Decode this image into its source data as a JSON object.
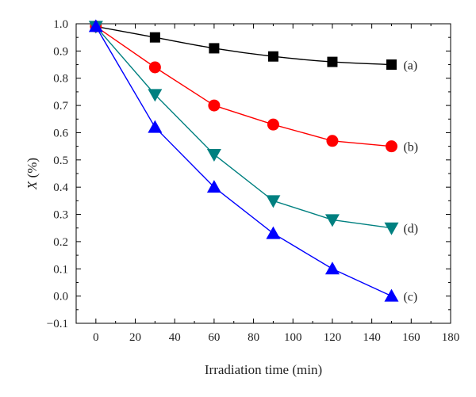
{
  "chart_data": {
    "type": "line",
    "xlabel": "Irradiation time (min)",
    "ylabel_italic": "X",
    "ylabel_rest": " (%)",
    "xlim": [
      -10,
      180
    ],
    "ylim": [
      -0.1,
      1.0
    ],
    "xticks": [
      0,
      20,
      40,
      60,
      80,
      100,
      120,
      140,
      160,
      180
    ],
    "yticks": [
      -0.1,
      0.0,
      0.1,
      0.2,
      0.3,
      0.4,
      0.5,
      0.6,
      0.7,
      0.8,
      0.9,
      1.0
    ],
    "ytick_labels": [
      "−0.1",
      "0.0",
      "0.1",
      "0.2",
      "0.3",
      "0.4",
      "0.5",
      "0.6",
      "0.7",
      "0.8",
      "0.9",
      "1.0"
    ],
    "grid": false,
    "series": [
      {
        "name": "(a)",
        "color": "#000000",
        "marker": "square",
        "x": [
          0,
          30,
          60,
          90,
          120,
          150
        ],
        "y": [
          0.99,
          0.95,
          0.91,
          0.88,
          0.86,
          0.85
        ],
        "curve": "smooth"
      },
      {
        "name": "(b)",
        "color": "#ff0000",
        "marker": "circle",
        "x": [
          0,
          30,
          60,
          90,
          120,
          150
        ],
        "y": [
          0.99,
          0.84,
          0.7,
          0.63,
          0.57,
          0.55
        ],
        "curve": "straight"
      },
      {
        "name": "(d)",
        "color": "#008080",
        "marker": "triangle-down",
        "x": [
          0,
          30,
          60,
          90,
          120,
          150
        ],
        "y": [
          0.99,
          0.74,
          0.52,
          0.35,
          0.28,
          0.25
        ],
        "curve": "straight"
      },
      {
        "name": "(c)",
        "color": "#0000ff",
        "marker": "triangle-up",
        "x": [
          0,
          30,
          60,
          90,
          120,
          150
        ],
        "y": [
          0.99,
          0.62,
          0.4,
          0.23,
          0.1,
          0.0
        ],
        "curve": "straight"
      }
    ]
  }
}
